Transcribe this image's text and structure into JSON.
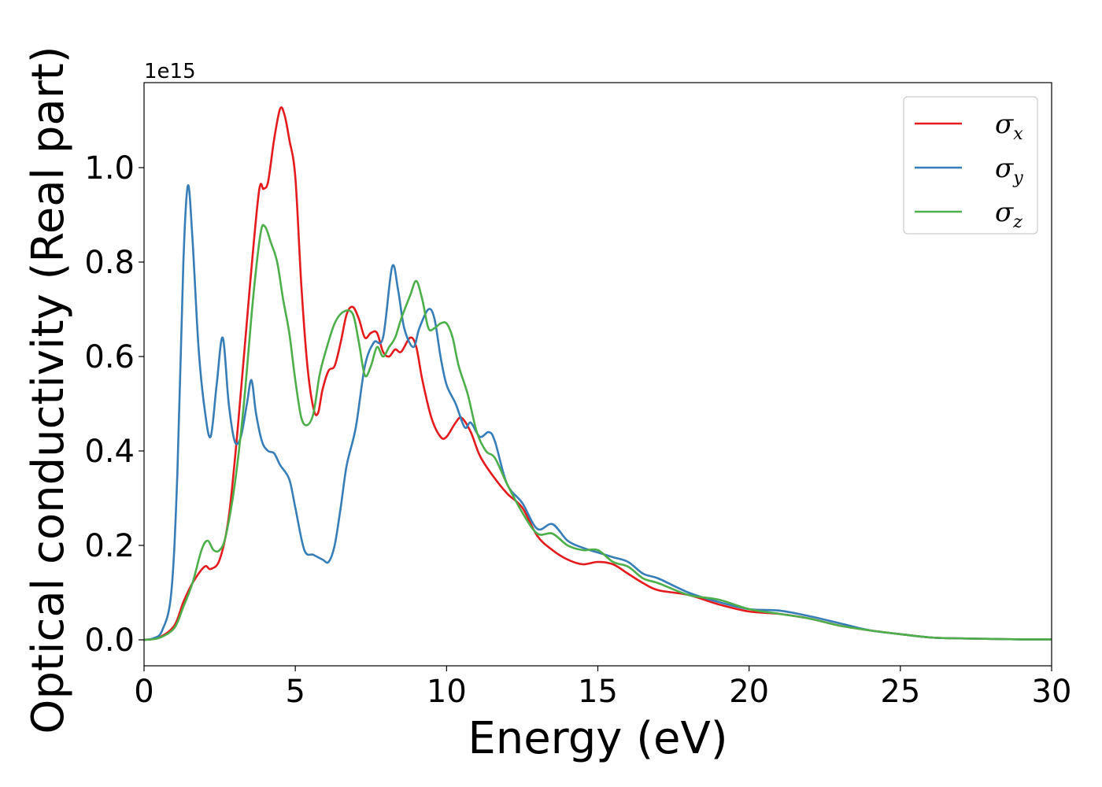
{
  "chart_data": {
    "type": "line",
    "xlabel": "Energy (eV)",
    "ylabel": "Optical conductivity (Real part)",
    "y_offset_text": "1e15",
    "xlim": [
      0,
      30
    ],
    "ylim": [
      -0.055,
      1.18
    ],
    "x_ticks": [
      0,
      5,
      10,
      15,
      20,
      25,
      30
    ],
    "x_tick_labels": [
      "0",
      "5",
      "10",
      "15",
      "20",
      "25",
      "30"
    ],
    "y_ticks": [
      0.0,
      0.2,
      0.4,
      0.6,
      0.8,
      1.0
    ],
    "y_tick_labels": [
      "0.0",
      "0.2",
      "0.4",
      "0.6",
      "0.8",
      "1.0"
    ],
    "grid": false,
    "legend_position": "top-right",
    "series": [
      {
        "name": "σx",
        "symbol": "σ",
        "subscript": "x",
        "color": "#e41a1c",
        "x": [
          0,
          0.5,
          1.0,
          1.3,
          1.6,
          2.0,
          2.2,
          2.5,
          2.8,
          3.1,
          3.5,
          3.8,
          3.95,
          4.1,
          4.3,
          4.5,
          4.65,
          4.8,
          5.0,
          5.2,
          5.4,
          5.6,
          5.75,
          5.9,
          6.1,
          6.3,
          6.5,
          6.7,
          6.9,
          7.1,
          7.3,
          7.5,
          7.7,
          7.9,
          8.1,
          8.3,
          8.5,
          8.8,
          9.0,
          9.2,
          9.5,
          9.8,
          10.0,
          10.3,
          10.5,
          10.8,
          11.1,
          11.5,
          12.0,
          12.5,
          13.0,
          13.5,
          14.0,
          14.5,
          15.0,
          15.5,
          16.0,
          16.5,
          17.0,
          18.0,
          19.0,
          20.0,
          21.0,
          22.0,
          23.0,
          24.0,
          25.0,
          26.0,
          27.0,
          28.0,
          29.0,
          30.0
        ],
        "y": [
          0.0,
          0.005,
          0.03,
          0.08,
          0.12,
          0.155,
          0.15,
          0.17,
          0.26,
          0.45,
          0.75,
          0.95,
          0.955,
          0.97,
          1.06,
          1.125,
          1.11,
          1.06,
          0.98,
          0.75,
          0.58,
          0.49,
          0.48,
          0.53,
          0.57,
          0.58,
          0.63,
          0.69,
          0.705,
          0.68,
          0.64,
          0.65,
          0.65,
          0.61,
          0.6,
          0.615,
          0.61,
          0.64,
          0.62,
          0.55,
          0.47,
          0.43,
          0.43,
          0.46,
          0.47,
          0.44,
          0.39,
          0.35,
          0.31,
          0.28,
          0.22,
          0.19,
          0.17,
          0.16,
          0.165,
          0.16,
          0.14,
          0.12,
          0.105,
          0.095,
          0.075,
          0.06,
          0.055,
          0.045,
          0.03,
          0.02,
          0.012,
          0.005,
          0.003,
          0.002,
          0.001,
          0.001
        ]
      },
      {
        "name": "σy",
        "symbol": "σ",
        "subscript": "y",
        "color": "#377eb8",
        "x": [
          0,
          0.3,
          0.6,
          0.9,
          1.1,
          1.3,
          1.45,
          1.6,
          1.8,
          2.0,
          2.2,
          2.4,
          2.6,
          2.8,
          3.0,
          3.2,
          3.4,
          3.55,
          3.7,
          3.9,
          4.1,
          4.3,
          4.5,
          4.8,
          5.0,
          5.3,
          5.6,
          5.9,
          6.1,
          6.3,
          6.5,
          6.7,
          7.0,
          7.3,
          7.6,
          7.9,
          8.2,
          8.4,
          8.6,
          8.9,
          9.1,
          9.4,
          9.6,
          9.8,
          10.0,
          10.3,
          10.6,
          10.8,
          11.1,
          11.4,
          11.6,
          12.0,
          12.5,
          13.0,
          13.5,
          14.0,
          14.5,
          15.0,
          15.5,
          16.0,
          16.5,
          17.0,
          18.0,
          19.0,
          20.0,
          21.0,
          22.0,
          23.0,
          24.0,
          25.0,
          26.0,
          27.0,
          28.0,
          29.0,
          30.0
        ],
        "y": [
          0.0,
          0.003,
          0.02,
          0.1,
          0.35,
          0.8,
          0.962,
          0.85,
          0.62,
          0.49,
          0.43,
          0.54,
          0.64,
          0.5,
          0.42,
          0.43,
          0.5,
          0.55,
          0.48,
          0.42,
          0.4,
          0.395,
          0.37,
          0.34,
          0.28,
          0.19,
          0.18,
          0.17,
          0.165,
          0.2,
          0.28,
          0.37,
          0.45,
          0.58,
          0.63,
          0.64,
          0.79,
          0.74,
          0.66,
          0.62,
          0.66,
          0.7,
          0.68,
          0.6,
          0.54,
          0.5,
          0.45,
          0.46,
          0.43,
          0.44,
          0.42,
          0.33,
          0.29,
          0.235,
          0.245,
          0.21,
          0.195,
          0.185,
          0.175,
          0.165,
          0.14,
          0.13,
          0.1,
          0.08,
          0.065,
          0.062,
          0.05,
          0.035,
          0.02,
          0.012,
          0.005,
          0.003,
          0.002,
          0.001,
          0.001
        ]
      },
      {
        "name": "σz",
        "symbol": "σ",
        "subscript": "z",
        "color": "#4daf4a",
        "x": [
          0,
          0.5,
          1.0,
          1.3,
          1.6,
          1.9,
          2.1,
          2.3,
          2.5,
          2.7,
          3.0,
          3.3,
          3.6,
          3.85,
          4.0,
          4.2,
          4.4,
          4.6,
          4.8,
          5.0,
          5.2,
          5.4,
          5.6,
          5.8,
          6.0,
          6.3,
          6.6,
          6.9,
          7.1,
          7.3,
          7.5,
          7.7,
          7.9,
          8.1,
          8.3,
          8.5,
          8.8,
          9.0,
          9.2,
          9.4,
          9.6,
          9.8,
          10.0,
          10.2,
          10.4,
          10.7,
          11.0,
          11.3,
          11.6,
          12.0,
          12.5,
          13.0,
          13.5,
          14.0,
          14.5,
          15.0,
          15.5,
          16.0,
          16.5,
          17.0,
          18.0,
          19.0,
          20.0,
          21.0,
          22.0,
          23.0,
          24.0,
          25.0,
          26.0,
          27.0,
          28.0,
          29.0,
          30.0
        ],
        "y": [
          0.0,
          0.004,
          0.025,
          0.07,
          0.12,
          0.19,
          0.21,
          0.19,
          0.19,
          0.22,
          0.33,
          0.5,
          0.72,
          0.86,
          0.875,
          0.84,
          0.8,
          0.72,
          0.65,
          0.55,
          0.47,
          0.455,
          0.48,
          0.56,
          0.61,
          0.67,
          0.695,
          0.69,
          0.63,
          0.56,
          0.58,
          0.62,
          0.6,
          0.62,
          0.64,
          0.68,
          0.73,
          0.76,
          0.72,
          0.66,
          0.66,
          0.67,
          0.67,
          0.64,
          0.58,
          0.52,
          0.44,
          0.4,
          0.385,
          0.33,
          0.27,
          0.225,
          0.225,
          0.2,
          0.19,
          0.19,
          0.165,
          0.155,
          0.13,
          0.12,
          0.095,
          0.085,
          0.065,
          0.055,
          0.045,
          0.03,
          0.02,
          0.012,
          0.005,
          0.003,
          0.002,
          0.001,
          0.001
        ]
      }
    ]
  }
}
